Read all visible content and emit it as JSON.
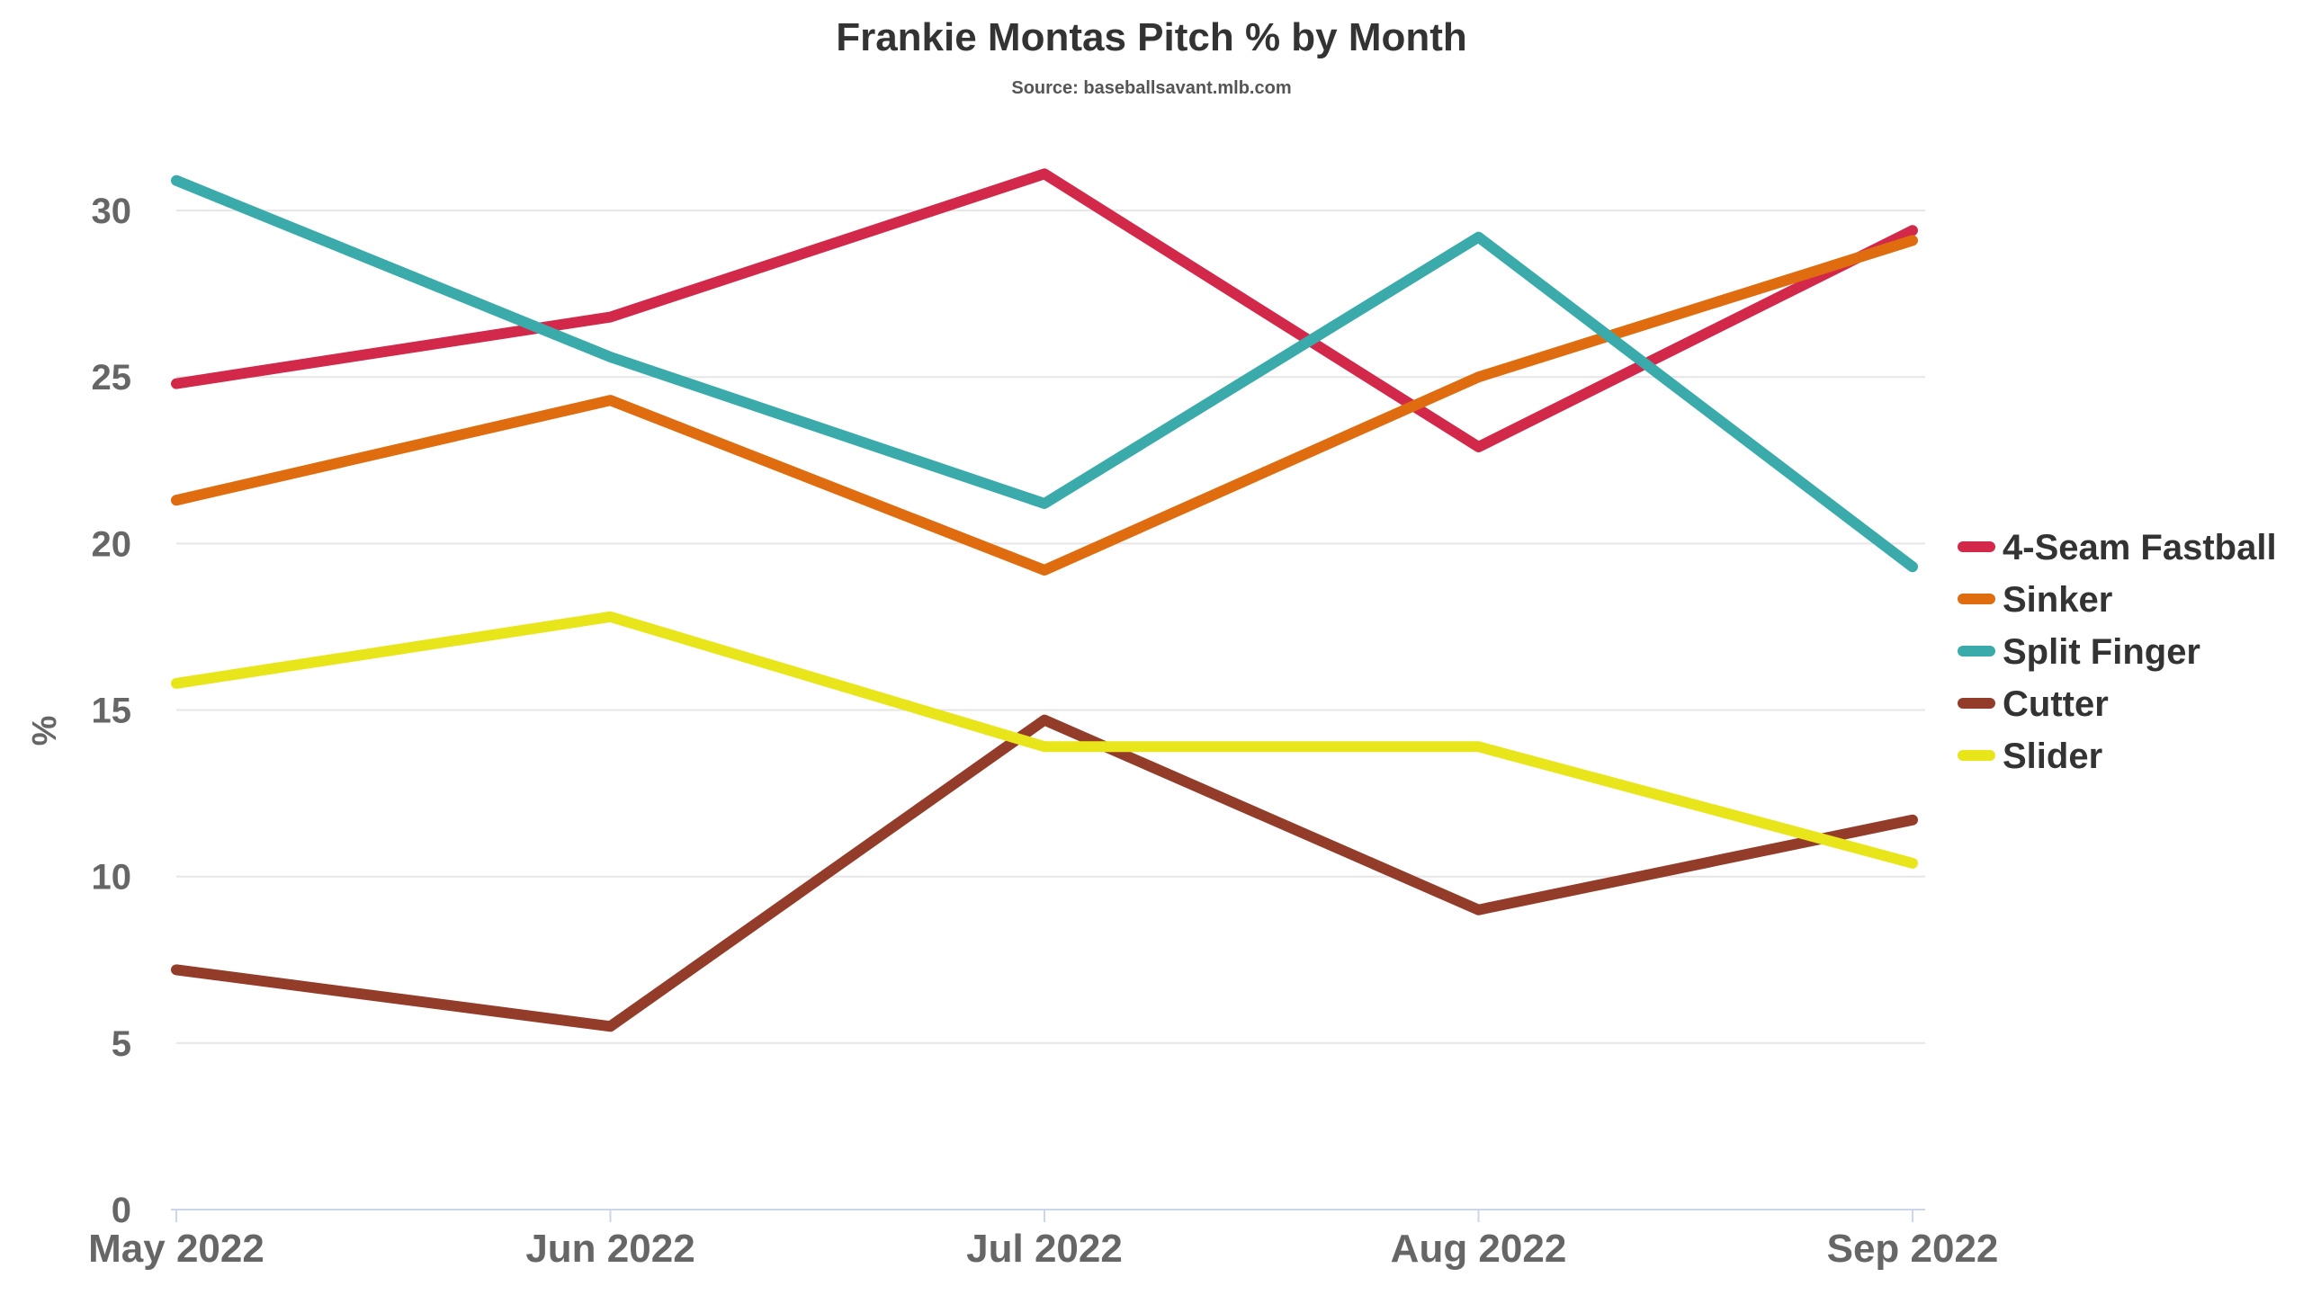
{
  "chart_data": {
    "type": "line",
    "title": "Frankie Montas Pitch % by Month",
    "subtitle": "Source: baseballsavant.mlb.com",
    "xlabel": "",
    "ylabel": "%",
    "categories": [
      "May 2022",
      "Jun 2022",
      "Jul 2022",
      "Aug 2022",
      "Sep 2022"
    ],
    "ylim": [
      0,
      32
    ],
    "yticks": [
      0,
      5,
      10,
      15,
      20,
      25,
      30
    ],
    "grid": true,
    "legend_position": "right",
    "series": [
      {
        "name": "4-Seam Fastball",
        "color": "#d2294b",
        "values": [
          24.8,
          26.8,
          31.1,
          22.9,
          29.4
        ]
      },
      {
        "name": "Sinker",
        "color": "#e06c10",
        "values": [
          21.3,
          24.3,
          19.2,
          25.0,
          29.1
        ]
      },
      {
        "name": "Split Finger",
        "color": "#3aaaaa",
        "values": [
          30.9,
          25.6,
          21.2,
          29.2,
          19.3
        ]
      },
      {
        "name": "Cutter",
        "color": "#933c2a",
        "values": [
          7.2,
          5.5,
          14.7,
          9.0,
          11.7
        ]
      },
      {
        "name": "Slider",
        "color": "#e8e61a",
        "values": [
          15.8,
          17.8,
          13.9,
          13.9,
          10.4
        ]
      }
    ]
  }
}
